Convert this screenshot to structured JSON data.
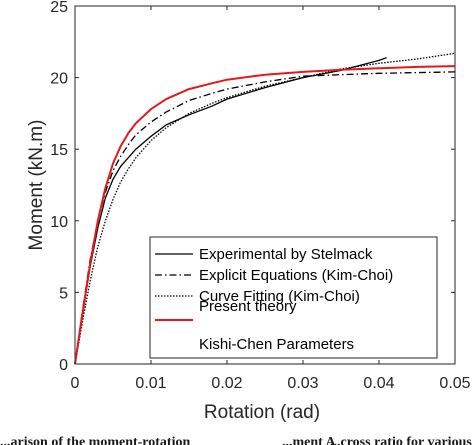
{
  "chart_data": {
    "type": "line",
    "title": "",
    "xlabel": "Rotation (rad)",
    "ylabel": "Moment (kN.m)",
    "xlim": [
      0,
      0.05
    ],
    "ylim": [
      0,
      25
    ],
    "xticks": [
      "0",
      "0.01",
      "0.02",
      "0.03",
      "0.04",
      "0.05"
    ],
    "yticks": [
      "0",
      "5",
      "10",
      "15",
      "20",
      "25"
    ],
    "grid": false,
    "legend_position": "bottom-right",
    "legend_note": "Kishi-Chen Parameters",
    "series": [
      {
        "name": "Experimental by Stelmack",
        "style": "solid",
        "color": "#000000",
        "points": [
          [
            0,
            0
          ],
          [
            0.001,
            3.5
          ],
          [
            0.002,
            6.8
          ],
          [
            0.003,
            9.5
          ],
          [
            0.004,
            11.6
          ],
          [
            0.005,
            12.9
          ],
          [
            0.006,
            13.8
          ],
          [
            0.007,
            14.4
          ],
          [
            0.008,
            15.0
          ],
          [
            0.01,
            15.9
          ],
          [
            0.012,
            16.7
          ],
          [
            0.015,
            17.4
          ],
          [
            0.018,
            18.0
          ],
          [
            0.02,
            18.5
          ],
          [
            0.025,
            19.3
          ],
          [
            0.03,
            20.0
          ],
          [
            0.035,
            20.5
          ],
          [
            0.04,
            21.2
          ],
          [
            0.041,
            21.4
          ]
        ]
      },
      {
        "name": "Explicit Equations (Kim-Choi)",
        "style": "dashdot",
        "color": "#000000",
        "points": [
          [
            0,
            0
          ],
          [
            0.001,
            3.8
          ],
          [
            0.002,
            7.3
          ],
          [
            0.003,
            10.0
          ],
          [
            0.004,
            12.0
          ],
          [
            0.005,
            13.5
          ],
          [
            0.006,
            14.5
          ],
          [
            0.007,
            15.3
          ],
          [
            0.008,
            16.0
          ],
          [
            0.01,
            16.9
          ],
          [
            0.012,
            17.6
          ],
          [
            0.015,
            18.4
          ],
          [
            0.018,
            18.9
          ],
          [
            0.02,
            19.2
          ],
          [
            0.025,
            19.7
          ],
          [
            0.03,
            20.1
          ],
          [
            0.035,
            20.2
          ],
          [
            0.04,
            20.3
          ],
          [
            0.045,
            20.35
          ],
          [
            0.05,
            20.4
          ]
        ]
      },
      {
        "name": "Curve Fitting (Kim-Choi)",
        "style": "dotted",
        "color": "#000000",
        "points": [
          [
            0,
            0
          ],
          [
            0.001,
            3.0
          ],
          [
            0.002,
            5.8
          ],
          [
            0.003,
            8.2
          ],
          [
            0.004,
            10.0
          ],
          [
            0.005,
            11.5
          ],
          [
            0.006,
            12.7
          ],
          [
            0.007,
            13.6
          ],
          [
            0.008,
            14.4
          ],
          [
            0.01,
            15.6
          ],
          [
            0.012,
            16.5
          ],
          [
            0.015,
            17.5
          ],
          [
            0.018,
            18.2
          ],
          [
            0.02,
            18.6
          ],
          [
            0.025,
            19.4
          ],
          [
            0.03,
            20.0
          ],
          [
            0.035,
            20.6
          ],
          [
            0.04,
            21.0
          ],
          [
            0.045,
            21.3
          ],
          [
            0.05,
            21.7
          ]
        ]
      },
      {
        "name": "Present theory",
        "style": "solid",
        "color": "#e31a1c",
        "points": [
          [
            0,
            0
          ],
          [
            0.001,
            3.6
          ],
          [
            0.002,
            7.0
          ],
          [
            0.003,
            10.0
          ],
          [
            0.004,
            12.3
          ],
          [
            0.005,
            14.0
          ],
          [
            0.006,
            15.2
          ],
          [
            0.007,
            16.1
          ],
          [
            0.008,
            16.8
          ],
          [
            0.01,
            17.8
          ],
          [
            0.012,
            18.5
          ],
          [
            0.015,
            19.2
          ],
          [
            0.018,
            19.6
          ],
          [
            0.02,
            19.85
          ],
          [
            0.025,
            20.2
          ],
          [
            0.03,
            20.4
          ],
          [
            0.035,
            20.55
          ],
          [
            0.04,
            20.65
          ],
          [
            0.045,
            20.75
          ],
          [
            0.05,
            20.8
          ]
        ]
      }
    ]
  },
  "caption": {
    "fragments": [
      "...arison of the moment-rotation",
      "...ment A",
      "...cross ratio for various"
    ]
  }
}
